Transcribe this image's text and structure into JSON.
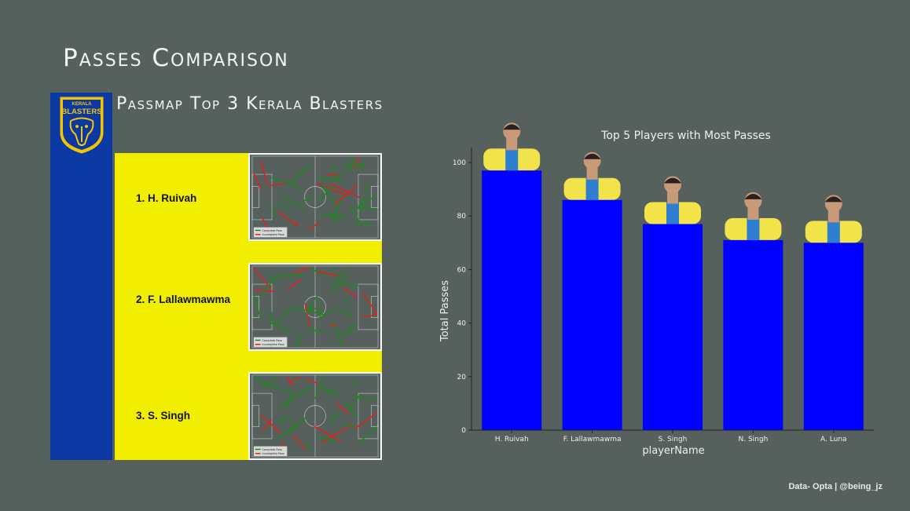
{
  "header": {
    "title": "Passes Comparison",
    "subtitle": "Passmap Top 3 Kerala Blasters"
  },
  "logo": {
    "top_text": "KERALA",
    "main_text": "BLASTERS"
  },
  "passmaps": [
    {
      "label": "1. H. Ruivah",
      "legend_complete": "Complete Pass",
      "legend_incomplete": "Incomplete Pass"
    },
    {
      "label": "2. F. Lallawmawma",
      "legend_complete": "Complete Pass",
      "legend_incomplete": "Incomplete Pass"
    },
    {
      "label": "3. S. Singh",
      "legend_complete": "Complete Pass",
      "legend_incomplete": "Incomplete Pass"
    }
  ],
  "colors": {
    "background": "#56615e",
    "strip_blue": "#0b39a3",
    "panel_yellow": "#f2ee00",
    "bar_blue": "#0000ff",
    "complete_pass": "#1a8a1a",
    "incomplete_pass": "#e0201a"
  },
  "chart_data": {
    "type": "bar",
    "title": "Top 5 Players with Most Passes",
    "xlabel": "playerName",
    "ylabel": "Total Passes",
    "categories": [
      "H. Ruivah",
      "F. Lallawmawma",
      "S. Singh",
      "N. Singh",
      "A. Luna"
    ],
    "values": [
      97,
      86,
      77,
      71,
      70
    ],
    "ylim": [
      0,
      105
    ],
    "yticks": [
      0,
      20,
      40,
      60,
      80,
      100
    ],
    "grid": false,
    "legend": "none"
  },
  "footer": {
    "credit": "Data- Opta | @being_jz"
  }
}
